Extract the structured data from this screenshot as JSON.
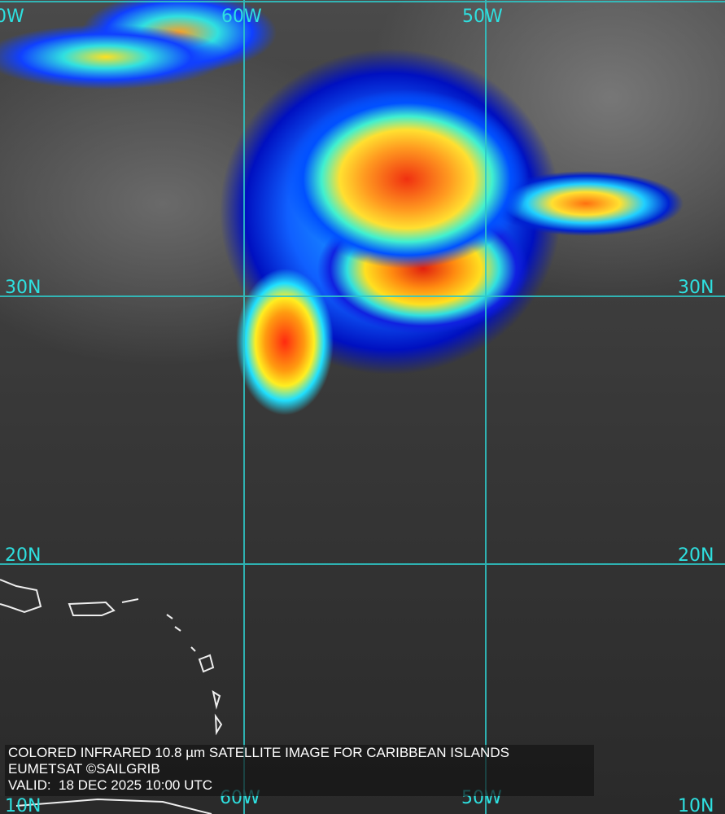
{
  "caption": {
    "title": "COLORED INFRARED 10.8 µm SATELLITE IMAGE FOR CARIBBEAN ISLANDS",
    "credit": "EUMETSAT ©SAILGRIB",
    "valid": "VALID:  18 DEC 2025 10:00 UTC"
  },
  "grid_labels": {
    "top_left": "0W",
    "top_60w": "60W",
    "top_50w": "50W",
    "left_30n": "30N",
    "right_30n": "30N",
    "left_20n": "20N",
    "right_20n": "20N",
    "bottom_left": "10N",
    "bottom_60w": "60W",
    "bottom_50w": "50W",
    "bottom_right": "10N"
  },
  "colors": {
    "grid": "#2ee0e0",
    "caption_text": "#ffffff"
  }
}
